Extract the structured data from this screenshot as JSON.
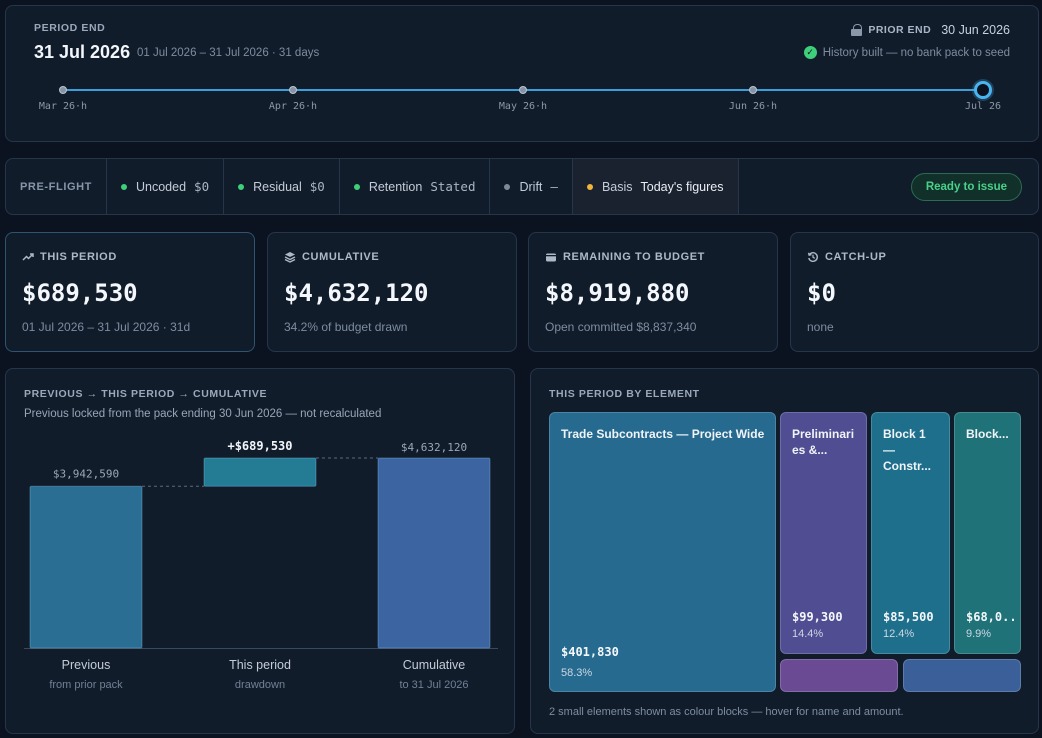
{
  "period": {
    "label": "PERIOD END",
    "date": "31 Jul 2026",
    "range": "01 Jul 2026 – 31 Jul 2026 · 31 days",
    "prior_label": "PRIOR END",
    "prior_date": "30 Jun 2026",
    "history_text": "History built — no bank pack to seed",
    "timeline": [
      "Mar 26·h",
      "Apr 26·h",
      "May 26·h",
      "Jun 26·h",
      "Jul 26"
    ]
  },
  "preflight": {
    "title": "PRE-FLIGHT",
    "items": [
      {
        "label": "Uncoded",
        "value": "$0",
        "status": "green"
      },
      {
        "label": "Residual",
        "value": "$0",
        "status": "green"
      },
      {
        "label": "Retention",
        "value": "Stated",
        "status": "green"
      },
      {
        "label": "Drift",
        "value": "—",
        "status": "gray"
      },
      {
        "label": "Basis",
        "value": "Today's figures",
        "status": "amber"
      }
    ],
    "ready_label": "Ready to issue"
  },
  "kpis": [
    {
      "title": "THIS PERIOD",
      "value": "$689,530",
      "sub": "01 Jul 2026 – 31 Jul 2026 · 31d",
      "icon": "trend-up-icon"
    },
    {
      "title": "CUMULATIVE",
      "value": "$4,632,120",
      "sub": "34.2% of budget drawn",
      "icon": "layers-icon"
    },
    {
      "title": "REMAINING TO BUDGET",
      "value": "$8,919,880",
      "sub": "Open committed $8,837,340",
      "icon": "wallet-icon"
    },
    {
      "title": "CATCH-UP",
      "value": "$0",
      "sub": "none",
      "icon": "history-icon"
    }
  ],
  "waterfall": {
    "title": "PREVIOUS → THIS PERIOD → CUMULATIVE",
    "subtitle": "Previous locked from the pack ending 30 Jun 2026 — not recalculated",
    "categories": [
      {
        "name": "Previous",
        "sub": "from prior pack"
      },
      {
        "name": "This period",
        "sub": "drawdown"
      },
      {
        "name": "Cumulative",
        "sub": "to 31 Jul 2026"
      }
    ]
  },
  "chart_data": {
    "type": "bar",
    "categories": [
      "Previous",
      "This period",
      "Cumulative"
    ],
    "values": [
      3942590,
      689530,
      4632120
    ],
    "labels": [
      "$3,942,590",
      "+$689,530",
      "$4,632,120"
    ],
    "colors": [
      "#2a6f93",
      "#237c94",
      "#3c64a0"
    ]
  },
  "treemap": {
    "title": "THIS PERIOD BY ELEMENT",
    "tiles": [
      {
        "name": "Trade Subcontracts — Project Wide",
        "amount": "$401,830",
        "pct": "58.3%",
        "color": "#266a90"
      },
      {
        "name": "Preliminari es &...",
        "amount": "$99,300",
        "pct": "14.4%",
        "color": "#504d92"
      },
      {
        "name": "Block 1 — Constr...",
        "amount": "$85,500",
        "pct": "12.4%",
        "color": "#1e6f8c"
      },
      {
        "name": "Block...",
        "amount": "$68,0...",
        "pct": "9.9%",
        "color": "#1f7278"
      }
    ],
    "small_colors": [
      "#6a4b93",
      "#3b5f98"
    ],
    "footnote": "2 small elements shown as colour blocks — hover for name and amount."
  }
}
